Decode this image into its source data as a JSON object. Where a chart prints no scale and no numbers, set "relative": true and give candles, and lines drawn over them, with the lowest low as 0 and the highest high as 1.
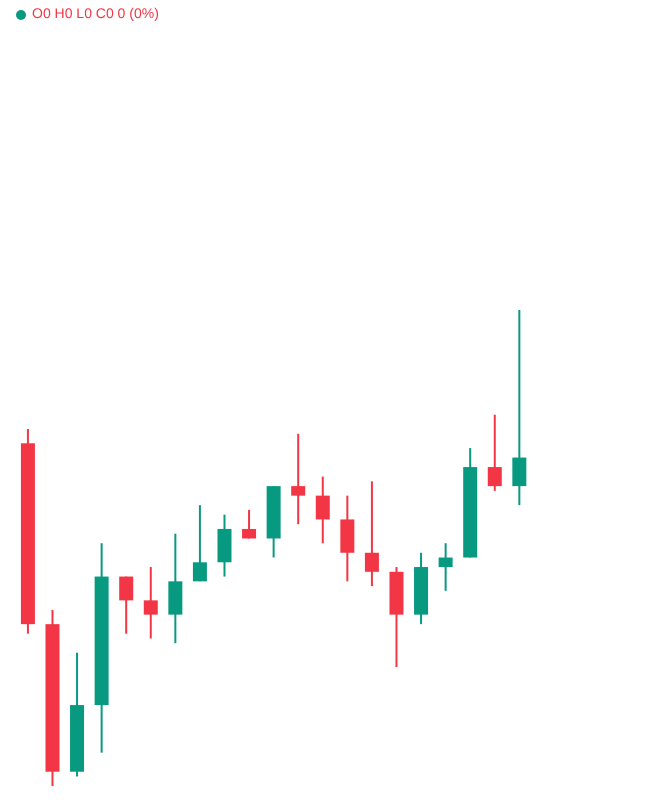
{
  "chart_data": {
    "type": "candlestick",
    "relative": true,
    "annotations": [
      "O0 H0 L0 C0 0 (0%)"
    ],
    "categories": [
      null,
      null,
      null,
      null,
      null,
      null,
      null,
      null,
      null,
      null,
      null,
      null,
      null,
      null,
      null,
      null,
      null,
      null,
      null,
      null,
      null
    ],
    "ohlc": [
      [
        0.72,
        0.75,
        0.32,
        0.34
      ],
      [
        0.34,
        0.37,
        0,
        0.03
      ],
      [
        0.03,
        0.28,
        0.02,
        0.17
      ],
      [
        0.17,
        0.51,
        0.07,
        0.44
      ],
      [
        0.44,
        0.44,
        0.32,
        0.39
      ],
      [
        0.39,
        0.46,
        0.31,
        0.36
      ],
      [
        0.36,
        0.53,
        0.3,
        0.43
      ],
      [
        0.43,
        0.59,
        0.43,
        0.47
      ],
      [
        0.47,
        0.57,
        0.44,
        0.54
      ],
      [
        0.54,
        0.58,
        0.52,
        0.52
      ],
      [
        0.52,
        0.63,
        0.48,
        0.63
      ],
      [
        0.63,
        0.74,
        0.55,
        0.61
      ],
      [
        0.61,
        0.65,
        0.51,
        0.56
      ],
      [
        0.56,
        0.61,
        0.43,
        0.49
      ],
      [
        0.49,
        0.64,
        0.42,
        0.45
      ],
      [
        0.45,
        0.46,
        0.25,
        0.36
      ],
      [
        0.36,
        0.49,
        0.34,
        0.46
      ],
      [
        0.46,
        0.51,
        0.41,
        0.48
      ],
      [
        0.48,
        0.71,
        0.48,
        0.67
      ],
      [
        0.67,
        0.78,
        0.62,
        0.63
      ],
      [
        0.63,
        1,
        0.59,
        0.69
      ]
    ],
    "colors": [
      "#f23645",
      "#f23645",
      "#089981",
      "#089981",
      "#f23645",
      "#f23645",
      "#089981",
      "#089981",
      "#089981",
      "#f23645",
      "#089981",
      "#f23645",
      "#f23645",
      "#f23645",
      "#f23645",
      "#f23645",
      "#089981",
      "#089981",
      "#089981",
      "#f23645",
      "#089981"
    ]
  }
}
